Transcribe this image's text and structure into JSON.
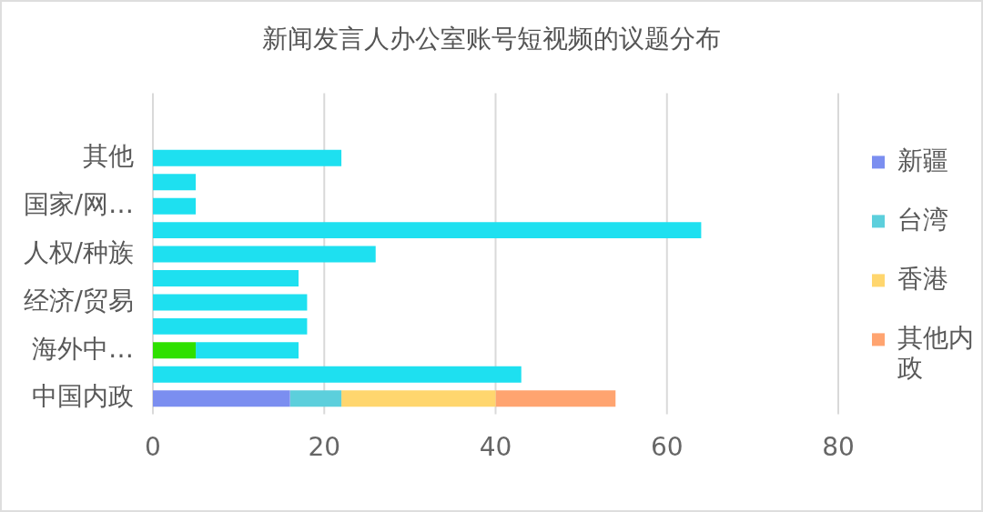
{
  "chart_data": {
    "type": "bar",
    "orientation": "horizontal",
    "stacked": true,
    "title": "新闻发言人办公室账号短视频的议题分布",
    "categories": [
      "其他",
      null,
      "国家/网…",
      null,
      "人权/种族",
      null,
      "经济/贸易",
      null,
      "海外中…",
      null,
      "中国内政"
    ],
    "series": [
      {
        "name": "新疆",
        "color": "#7b8ef0",
        "values": [
          null,
          null,
          null,
          null,
          null,
          null,
          null,
          null,
          null,
          null,
          16
        ]
      },
      {
        "name": "台湾",
        "color": "#5ccfdc",
        "values": [
          null,
          null,
          null,
          null,
          null,
          null,
          null,
          null,
          null,
          null,
          6
        ]
      },
      {
        "name": "香港",
        "color": "#ffd66e",
        "values": [
          null,
          null,
          null,
          null,
          null,
          null,
          null,
          null,
          null,
          null,
          18
        ]
      },
      {
        "name": "其他内政",
        "color": "#ffa470",
        "values": [
          null,
          null,
          null,
          null,
          null,
          null,
          null,
          null,
          null,
          null,
          14
        ]
      },
      {
        "color": "#2ee000",
        "values": [
          null,
          null,
          null,
          null,
          null,
          null,
          null,
          null,
          5,
          null,
          null
        ]
      },
      {
        "color": "#1ee0f0",
        "values": [
          22,
          5,
          5,
          64,
          26,
          17,
          18,
          18,
          12,
          43,
          null
        ]
      }
    ],
    "xlim": [
      0,
      80
    ],
    "xticks": [
      0,
      20,
      40,
      60,
      80
    ],
    "grid": "x",
    "legend": "right"
  }
}
